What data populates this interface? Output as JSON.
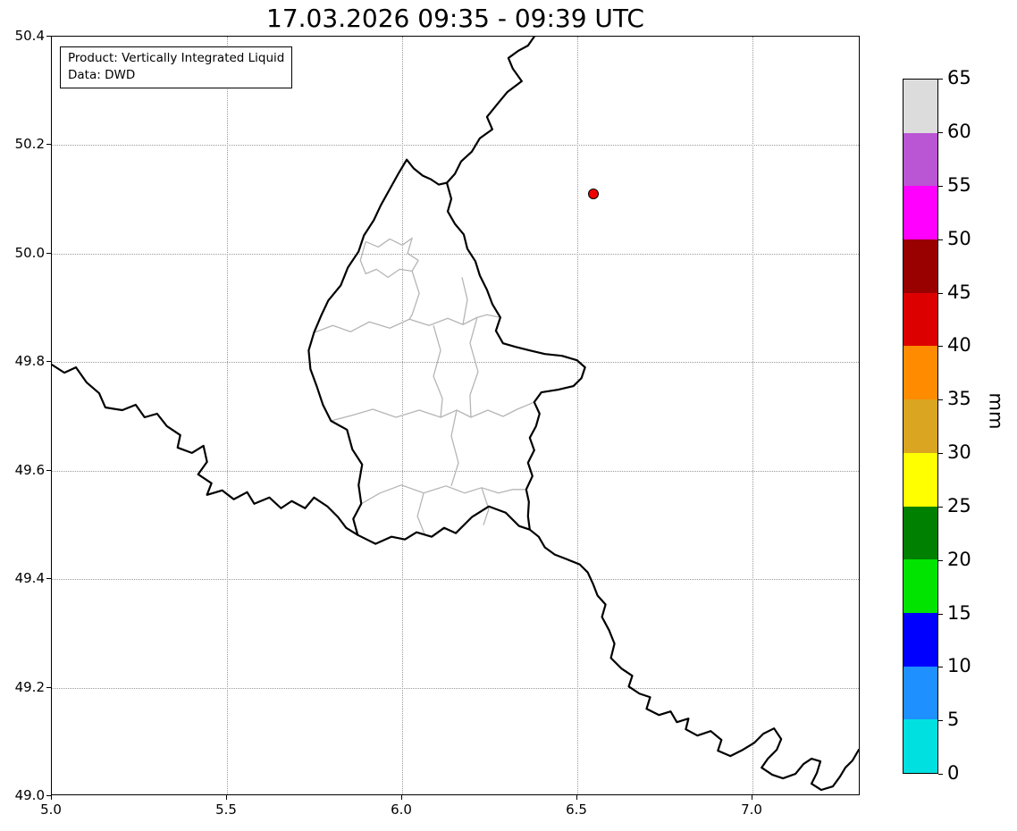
{
  "title": "17.03.2026 09:35 - 09:39 UTC",
  "legend": {
    "product_line": "Product: Vertically Integrated Liquid",
    "data_line": "Data: DWD"
  },
  "axes": {
    "x": {
      "min": 5.0,
      "max": 7.31,
      "ticks": [
        "5.0",
        "5.5",
        "6.0",
        "6.5",
        "7.0"
      ]
    },
    "y": {
      "min": 49.0,
      "max": 50.4,
      "ticks": [
        "50.4",
        "50.2",
        "50.0",
        "49.8",
        "49.6",
        "49.4",
        "49.2",
        "49.0"
      ]
    }
  },
  "marker": {
    "lon": 6.55,
    "lat": 50.11,
    "color": "#ee0000"
  },
  "colorbar": {
    "label": "mm",
    "tick_labels": [
      "65",
      "60",
      "55",
      "50",
      "45",
      "40",
      "35",
      "30",
      "25",
      "20",
      "15",
      "10",
      "5",
      "0"
    ],
    "segments": [
      {
        "range": "0-5",
        "color": "#00e0e0"
      },
      {
        "range": "5-10",
        "color": "#1e90ff"
      },
      {
        "range": "10-15",
        "color": "#0000ff"
      },
      {
        "range": "15-20",
        "color": "#00e400"
      },
      {
        "range": "20-25",
        "color": "#008000"
      },
      {
        "range": "25-30",
        "color": "#ffff00"
      },
      {
        "range": "30-35",
        "color": "#daa520"
      },
      {
        "range": "35-40",
        "color": "#ff8c00"
      },
      {
        "range": "40-45",
        "color": "#dd0000"
      },
      {
        "range": "45-50",
        "color": "#990000"
      },
      {
        "range": "50-55",
        "color": "#ff00ff"
      },
      {
        "range": "55-60",
        "color": "#ba55d3"
      },
      {
        "range": "60-65",
        "color": "#dcdcdc"
      }
    ]
  }
}
